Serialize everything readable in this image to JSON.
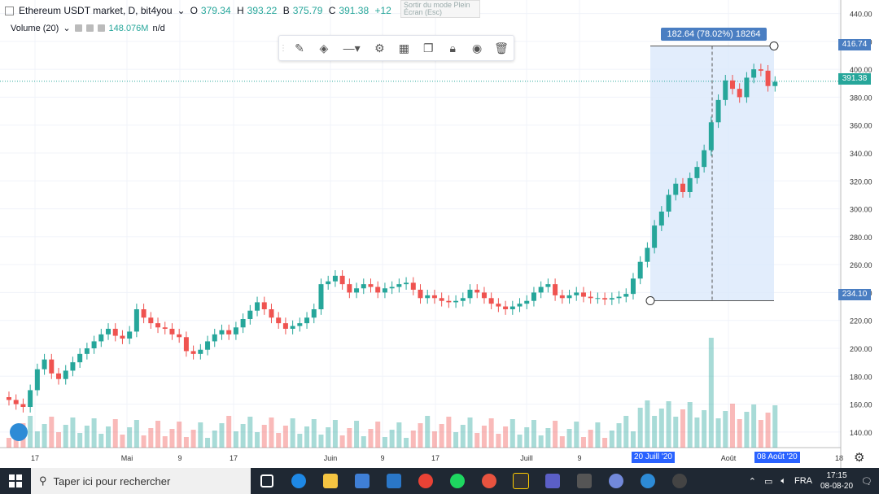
{
  "header": {
    "symbol": "Ethereum USDT market, D, bit4you",
    "o_label": "O",
    "o_value": "379.34",
    "h_label": "H",
    "h_value": "393.22",
    "b_label": "B",
    "b_value": "375.79",
    "c_label": "C",
    "c_value": "391.38",
    "change": "+12"
  },
  "fullscreen_tip": "Sortir du mode Plein Écran (Esc)",
  "volume": {
    "label": "Volume (20)",
    "value": "148.076M",
    "extra": "n/d"
  },
  "toolbar": {
    "icons": [
      "pencil-icon",
      "fill-bucket-icon",
      "line-style-icon",
      "settings-gear-icon",
      "template-icon",
      "clone-icon",
      "lock-icon",
      "eye-icon",
      "trash-icon"
    ]
  },
  "measure": {
    "label": "182.64 (78.02%) 18264",
    "high_tag": "416.74",
    "low_tag": "234.10"
  },
  "price_axis": [
    "440.00",
    "420.00",
    "400.00",
    "380.00",
    "360.00",
    "340.00",
    "320.00",
    "300.00",
    "280.00",
    "260.00",
    "240.00",
    "220.00",
    "200.00",
    "180.00",
    "160.00",
    "140.00"
  ],
  "last_price": "391.38",
  "time_axis": [
    "17",
    "Mai",
    "9",
    "17",
    "Juin",
    "9",
    "17",
    "Juill",
    "9",
    "Août",
    "18"
  ],
  "date_tags": {
    "start": "20 Juill '20",
    "end": "08 Août '20"
  },
  "colors": {
    "up": "#26a69a",
    "down": "#ef5350",
    "range_fill": "#dbe9fb",
    "tag": "#2962ff"
  },
  "chart_data": {
    "type": "candlestick",
    "price_range": [
      130,
      445
    ],
    "ohlc_sample_end": {
      "o": 379.34,
      "h": 393.22,
      "l": 375.79,
      "c": 391.38
    },
    "closes": [
      163,
      160,
      158,
      170,
      185,
      192,
      182,
      178,
      184,
      190,
      196,
      200,
      205,
      210,
      214,
      209,
      207,
      212,
      228,
      222,
      218,
      215,
      214,
      210,
      208,
      198,
      196,
      199,
      205,
      210,
      213,
      210,
      215,
      221,
      227,
      233,
      228,
      222,
      218,
      214,
      216,
      218,
      222,
      228,
      246,
      248,
      252,
      246,
      240,
      243,
      246,
      244,
      240,
      243,
      244,
      246,
      247,
      242,
      236,
      238,
      236,
      234,
      233,
      234,
      236,
      242,
      240,
      236,
      232,
      230,
      228,
      230,
      232,
      234,
      240,
      244,
      246,
      238,
      236,
      238,
      240,
      237,
      236,
      236,
      235,
      236,
      237,
      239,
      250,
      262,
      272,
      288,
      298,
      310,
      318,
      312,
      322,
      330,
      342,
      362,
      378,
      392,
      386,
      380,
      394,
      400,
      399,
      388,
      391
    ],
    "volume_note": "volume histogram under price panel"
  }
}
